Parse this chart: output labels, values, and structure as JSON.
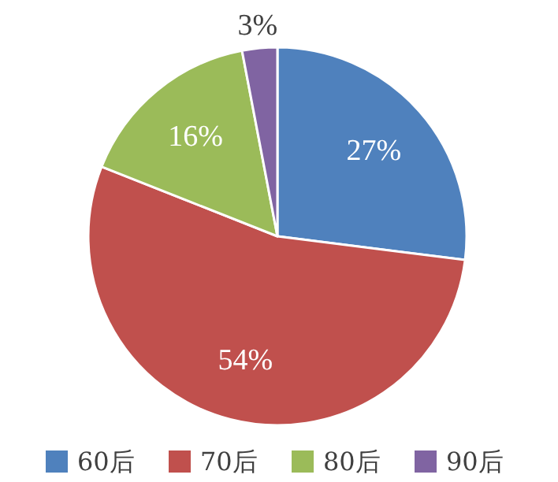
{
  "chart_data": {
    "type": "pie",
    "categories": [
      "60后",
      "70后",
      "80后",
      "90后"
    ],
    "values": [
      27,
      54,
      16,
      3
    ],
    "colors": [
      "#4f81bd",
      "#c0504d",
      "#9bbb59",
      "#8064a2"
    ],
    "value_labels": [
      "27%",
      "54%",
      "16%",
      "3%"
    ],
    "legend": "bottom"
  }
}
